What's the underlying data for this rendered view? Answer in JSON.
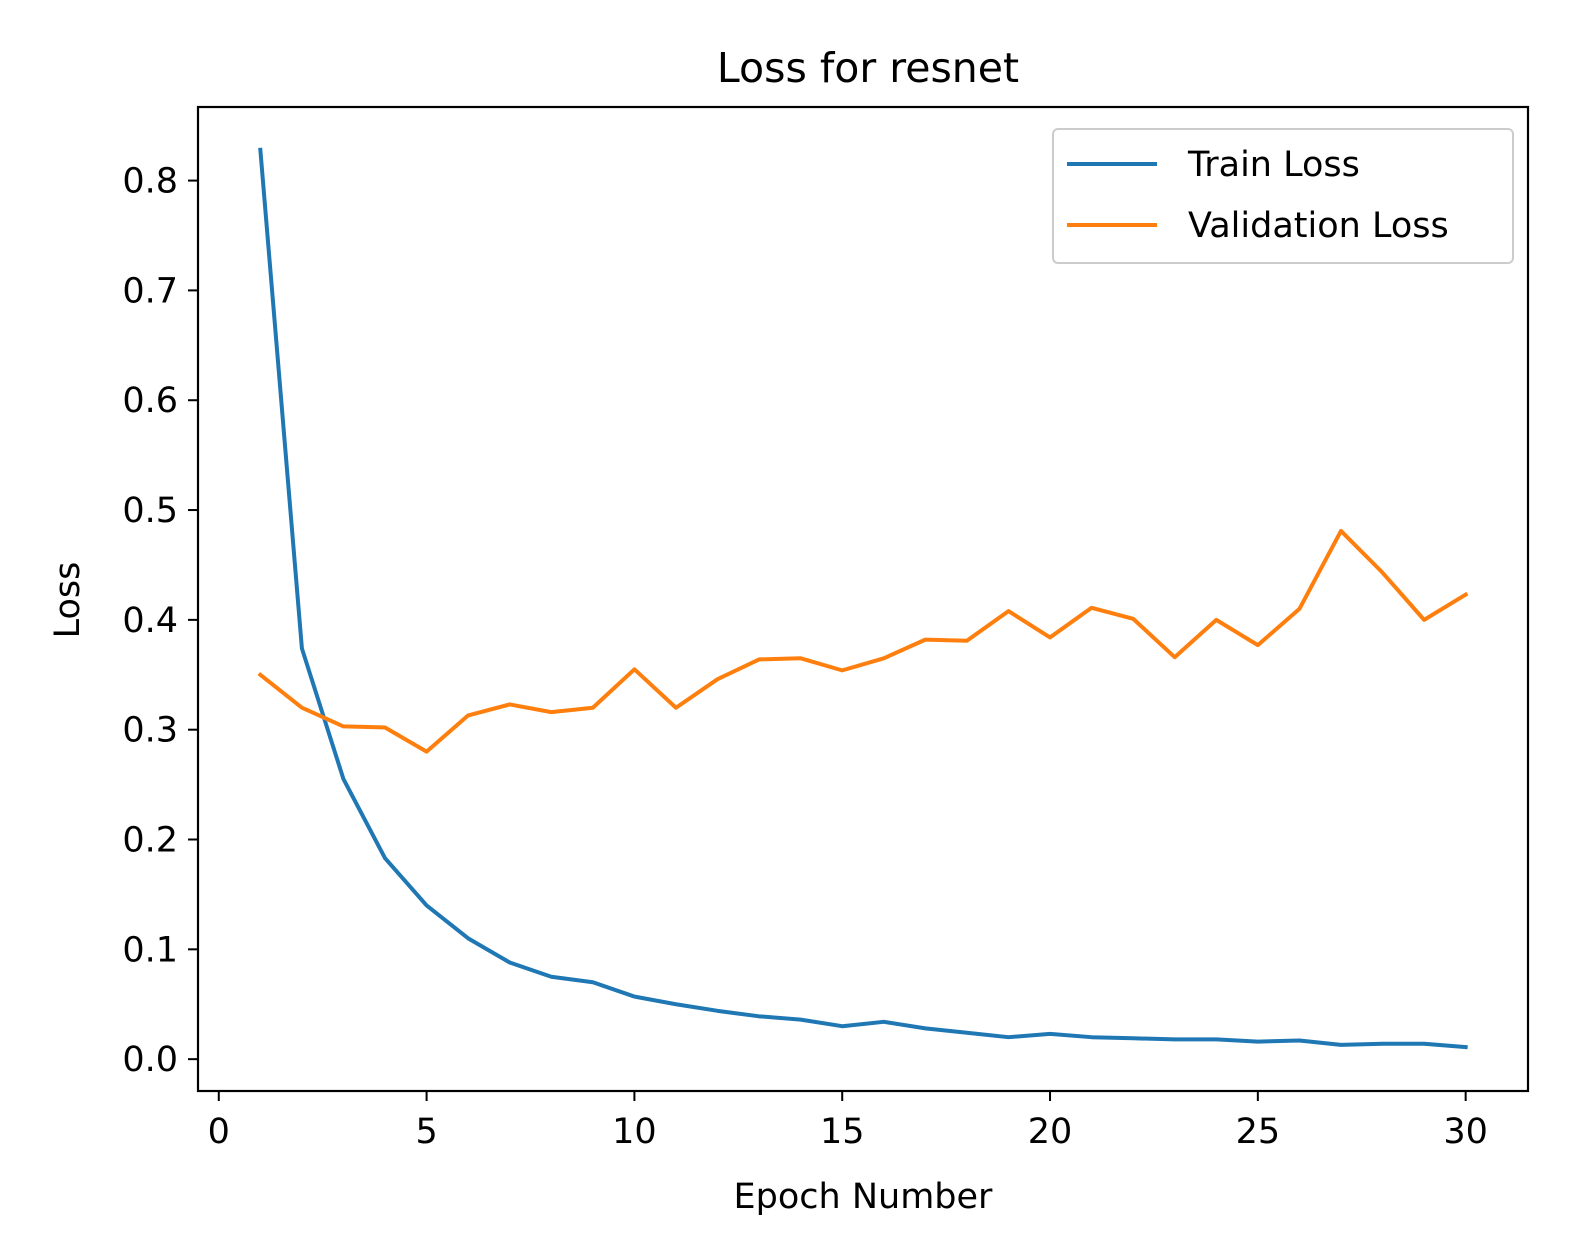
{
  "chart_data": {
    "type": "line",
    "title": "Loss for resnet",
    "xlabel": "Epoch Number",
    "ylabel": "Loss",
    "xlim": [
      -0.5,
      31.5
    ],
    "ylim": [
      -0.029,
      0.867
    ],
    "xticks": [
      0,
      5,
      10,
      15,
      20,
      25,
      30
    ],
    "xtick_labels": [
      "0",
      "5",
      "10",
      "15",
      "20",
      "25",
      "30"
    ],
    "yticks": [
      0.0,
      0.1,
      0.2,
      0.3,
      0.4,
      0.5,
      0.6,
      0.7,
      0.8
    ],
    "ytick_labels": [
      "0.0",
      "0.1",
      "0.2",
      "0.3",
      "0.4",
      "0.5",
      "0.6",
      "0.7",
      "0.8"
    ],
    "grid": false,
    "legend_position": "top-right",
    "x": [
      1,
      2,
      3,
      4,
      5,
      6,
      7,
      8,
      9,
      10,
      11,
      12,
      13,
      14,
      15,
      16,
      17,
      18,
      19,
      20,
      21,
      22,
      23,
      24,
      25,
      26,
      27,
      28,
      29,
      30
    ],
    "series": [
      {
        "name": "Train Loss",
        "color": "#1f77b4",
        "values": [
          0.828,
          0.374,
          0.255,
          0.183,
          0.14,
          0.11,
          0.088,
          0.075,
          0.07,
          0.057,
          0.05,
          0.044,
          0.039,
          0.036,
          0.03,
          0.034,
          0.028,
          0.024,
          0.02,
          0.023,
          0.02,
          0.019,
          0.018,
          0.018,
          0.016,
          0.017,
          0.013,
          0.014,
          0.014,
          0.011
        ]
      },
      {
        "name": "Validation Loss",
        "color": "#ff7f0e",
        "values": [
          0.35,
          0.32,
          0.303,
          0.302,
          0.28,
          0.313,
          0.323,
          0.316,
          0.32,
          0.355,
          0.32,
          0.346,
          0.364,
          0.365,
          0.354,
          0.365,
          0.382,
          0.381,
          0.408,
          0.384,
          0.411,
          0.401,
          0.366,
          0.4,
          0.377,
          0.41,
          0.481,
          0.443,
          0.4,
          0.423
        ]
      }
    ]
  }
}
